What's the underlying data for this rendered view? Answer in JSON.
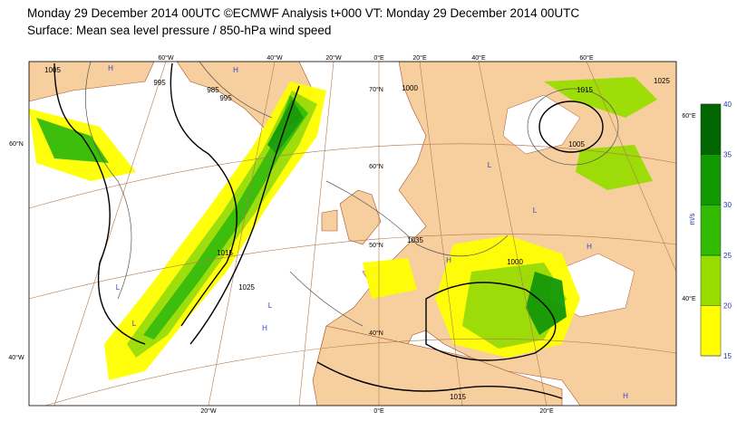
{
  "header": {
    "title": "Monday 29 December 2014 00UTC ©ECMWF Analysis t+000 VT: Monday 29 December 2014 00UTC",
    "subtitle": "Surface: Mean sea level pressure / 850-hPa wind speed"
  },
  "map": {
    "lon_labels_top": [
      "60°W",
      "40°W",
      "20°W",
      "0°E",
      "20°E",
      "40°E",
      "60°E"
    ],
    "lon_labels_bottom": [
      "20°W",
      "0°E",
      "20°E"
    ],
    "lat_labels_left": [
      "60°N",
      "40°W"
    ],
    "lat_labels_right": [
      "60°E",
      "40°E"
    ],
    "lat_labels_inner": [
      "70°N",
      "60°N",
      "50°N",
      "40°N"
    ],
    "contour_labels": [
      "1005",
      "995",
      "985",
      "995",
      "1015",
      "1025",
      "1000",
      "1035",
      "1015",
      "1005",
      "1025",
      "1000",
      "1015"
    ],
    "pressure_centers": [
      "H",
      "L",
      "H",
      "L",
      "L",
      "H",
      "L",
      "H",
      "L",
      "H",
      "H"
    ]
  },
  "colorbar": {
    "ticks": [
      15,
      20,
      25,
      30,
      35,
      40
    ],
    "unit": "m/s"
  }
}
